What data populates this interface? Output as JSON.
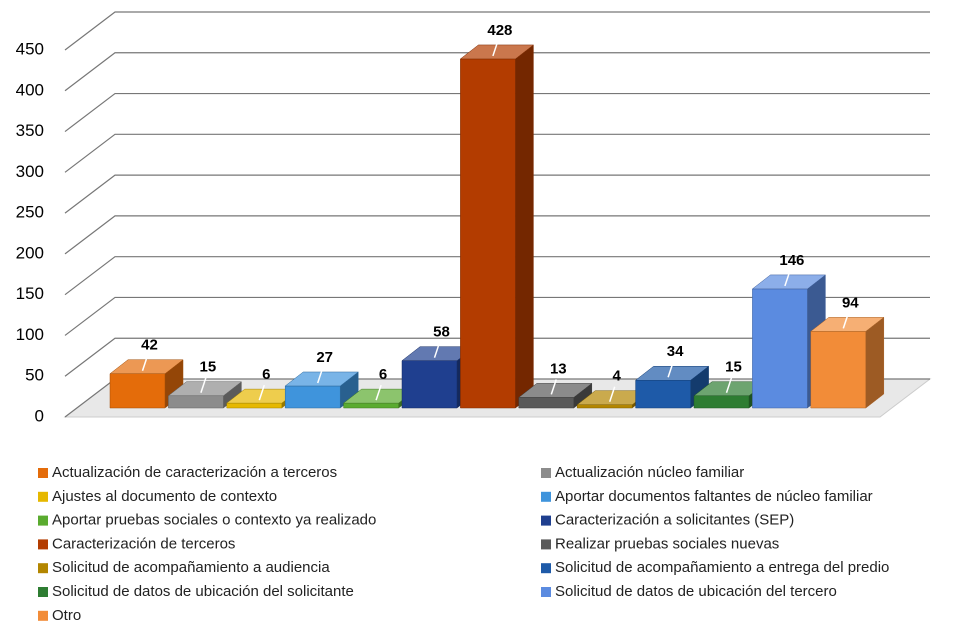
{
  "chart_data": {
    "type": "bar3d",
    "categories": [
      "Actualización de caracterización a terceros",
      "Actualización núcleo familiar",
      "Ajustes al documento de contexto",
      "Aportar documentos faltantes de núcleo familiar",
      "Aportar pruebas sociales o contexto ya realizado",
      "Caracterización a solicitantes (SEP)",
      "Caracterización de terceros",
      "Realizar pruebas sociales nuevas",
      "Solicitud de acompañamiento a audiencia",
      "Solicitud de acompañamiento a entrega del predio",
      "Solicitud de datos de ubicación del solicitante",
      "Solicitud de datos de ubicación del tercero",
      "Otro"
    ],
    "values": [
      42,
      15,
      6,
      27,
      6,
      58,
      428,
      13,
      4,
      34,
      15,
      146,
      94
    ],
    "colors": [
      "#e46c0a",
      "#8c8c8c",
      "#e6b800",
      "#3f94dc",
      "#5aab2f",
      "#1f3f8f",
      "#b33c00",
      "#595959",
      "#b38600",
      "#1e5aa8",
      "#2e7d32",
      "#5b8be0",
      "#f28c38"
    ],
    "ylim": [
      0,
      450
    ],
    "yticks": [
      0,
      50,
      100,
      150,
      200,
      250,
      300,
      350,
      400,
      450
    ],
    "grid": true,
    "legend": "bottom"
  }
}
